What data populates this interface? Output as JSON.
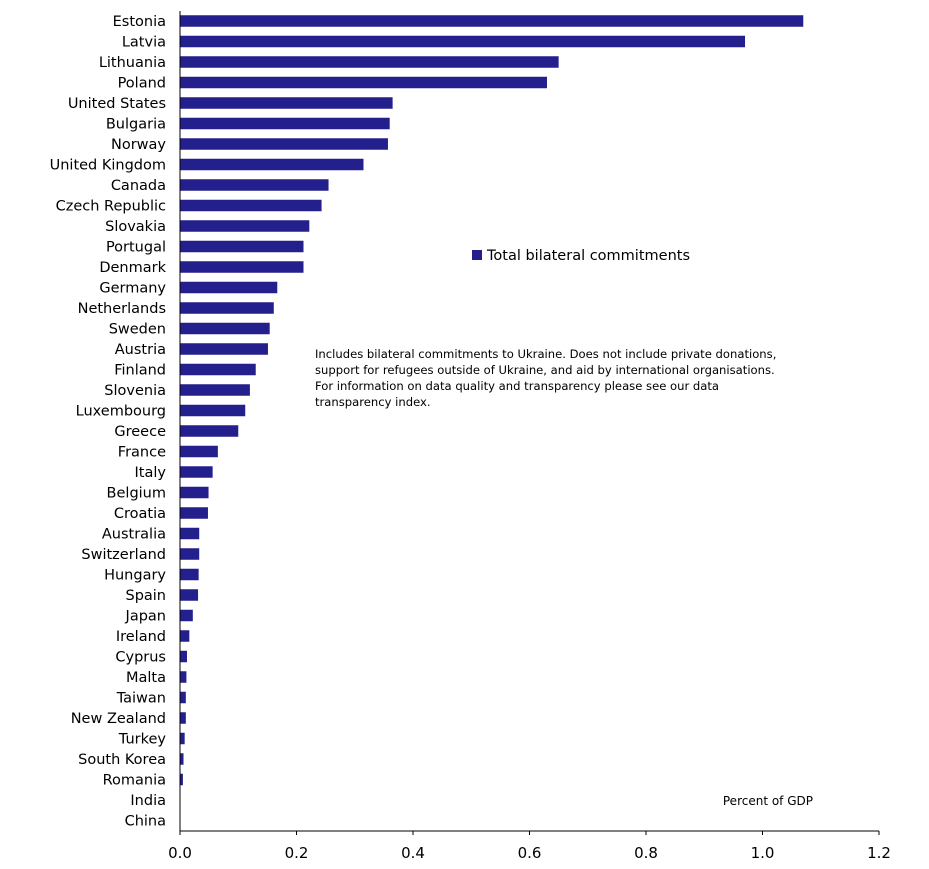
{
  "chart_data": {
    "type": "bar",
    "orientation": "horizontal",
    "categories": [
      "Estonia",
      "Latvia",
      "Lithuania",
      "Poland",
      "United States",
      "Bulgaria",
      "Norway",
      "United Kingdom",
      "Canada",
      "Czech Republic",
      "Slovakia",
      "Portugal",
      "Denmark",
      "Germany",
      "Netherlands",
      "Sweden",
      "Austria",
      "Finland",
      "Slovenia",
      "Luxembourg",
      "Greece",
      "France",
      "Italy",
      "Belgium",
      "Croatia",
      "Australia",
      "Switzerland",
      "Hungary",
      "Spain",
      "Japan",
      "Ireland",
      "Cyprus",
      "Malta",
      "Taiwan",
      "New Zealand",
      "Turkey",
      "South Korea",
      "Romania",
      "India",
      "China"
    ],
    "series": [
      {
        "name": "Total bilateral commitments",
        "color": "#231f8c",
        "values": [
          1.07,
          0.97,
          0.65,
          0.63,
          0.365,
          0.36,
          0.357,
          0.315,
          0.255,
          0.243,
          0.222,
          0.212,
          0.212,
          0.167,
          0.161,
          0.154,
          0.151,
          0.13,
          0.12,
          0.112,
          0.1,
          0.065,
          0.056,
          0.049,
          0.048,
          0.033,
          0.033,
          0.032,
          0.031,
          0.022,
          0.016,
          0.012,
          0.011,
          0.01,
          0.01,
          0.008,
          0.006,
          0.005,
          0.0,
          0.0
        ]
      }
    ],
    "xlim": [
      0,
      1.2
    ],
    "xticks": [
      "0.0",
      "0.2",
      "0.4",
      "0.6",
      "0.8",
      "1.0",
      "1.2"
    ],
    "xlabel": "Percent of GDP",
    "legend_position": "upper-middle",
    "note_lines": [
      "Includes bilateral commitments to Ukraine. Does not include private donations,",
      "support for refugees outside of Ukraine, and aid by international organisations.",
      "For information on data quality and transparency please see our data",
      "transparency index."
    ],
    "grid": false
  }
}
